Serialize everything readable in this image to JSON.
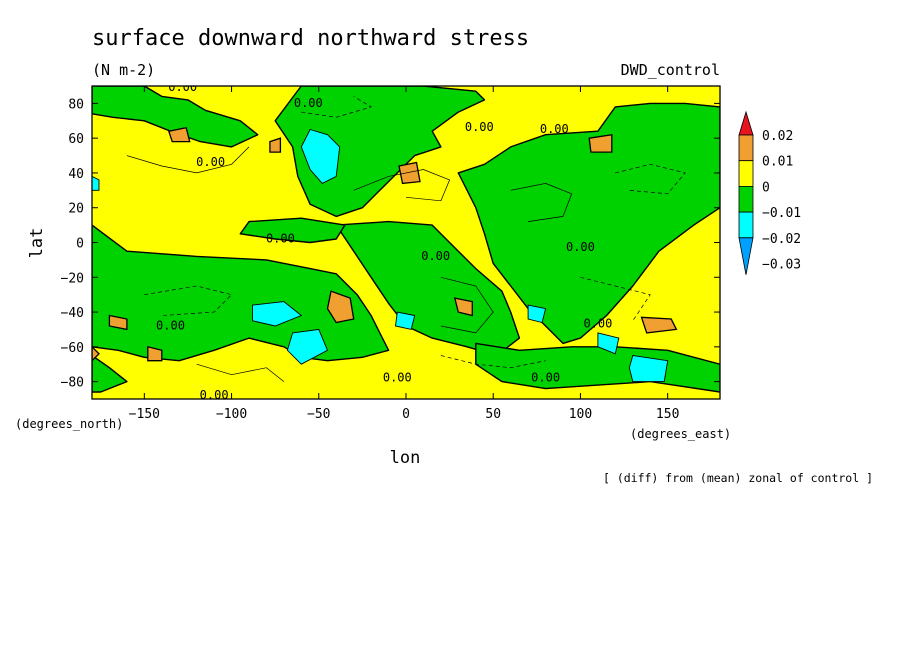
{
  "chart_data": {
    "type": "contour-map",
    "title": "surface downward northward stress",
    "units": "(N m-2)",
    "dataset": "DWD_control",
    "xlabel": "lon",
    "ylabel": "lat",
    "x_units_label": "(degrees_east)",
    "y_units_label": "(degrees_north)",
    "footnote": "[ (diff) from (mean) zonal of control ]",
    "xlim": [
      -180,
      180
    ],
    "ylim": [
      -90,
      90
    ],
    "x_ticks": [
      -150,
      -100,
      -50,
      0,
      50,
      100,
      150
    ],
    "y_ticks": [
      80,
      60,
      40,
      20,
      0,
      -20,
      -40,
      -60,
      -80
    ],
    "x_tick_labels": [
      "−150",
      "−100",
      "−50",
      "0",
      "50",
      "100",
      "150"
    ],
    "y_tick_labels": [
      "80",
      "60",
      "40",
      "20",
      "0",
      "−20",
      "−40",
      "−60",
      "−80"
    ],
    "contour_label": "0.00",
    "contour_label_positions": [
      {
        "lon": -128,
        "lat": 89
      },
      {
        "lon": -112,
        "lat": 46
      },
      {
        "lon": -56,
        "lat": 80
      },
      {
        "lon": 42,
        "lat": 66
      },
      {
        "lon": 85,
        "lat": 65
      },
      {
        "lon": -72,
        "lat": 2
      },
      {
        "lon": 17,
        "lat": -8
      },
      {
        "lon": 100,
        "lat": -3
      },
      {
        "lon": -135,
        "lat": -48
      },
      {
        "lon": 110,
        "lat": -47
      },
      {
        "lon": -5,
        "lat": -78
      },
      {
        "lon": 80,
        "lat": -78
      },
      {
        "lon": -110,
        "lat": -88
      }
    ],
    "colorbar": {
      "levels": [
        "0.02",
        "0.01",
        "0",
        "−0.01",
        "−0.02",
        "−0.03"
      ],
      "colors": [
        "#e8141e",
        "#f0a030",
        "#ffff00",
        "#00d200",
        "#00ffff",
        "#00a0ff"
      ]
    },
    "fill_colors": {
      "positive_0_001": "#ffff00",
      "positive_001_002": "#f0a030",
      "negative_0_001": "#00d200",
      "negative_001_002": "#00ffff"
    }
  }
}
